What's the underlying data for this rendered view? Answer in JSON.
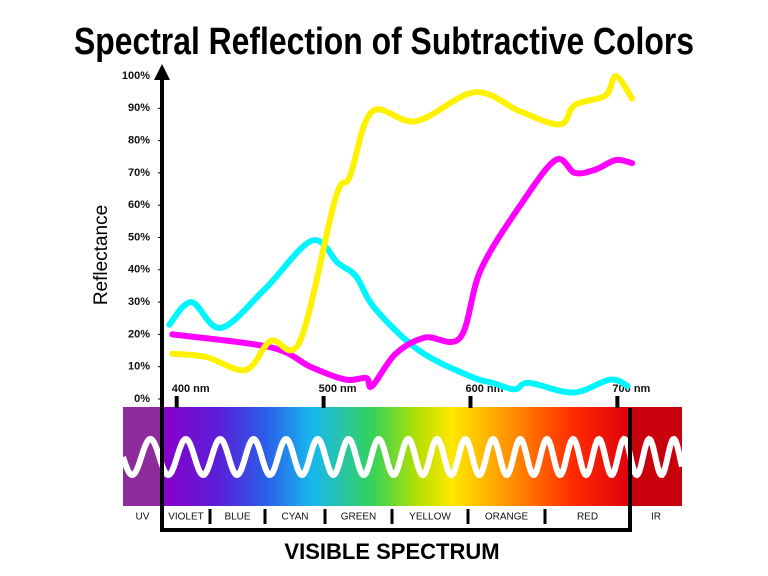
{
  "chart_data": {
    "type": "line",
    "title": "Spectral Reflection of Subtractive Colors",
    "y_label": "Reflectance",
    "spectrum_title": "VISIBLE SPECTRUM",
    "spectrum_labels": [
      "UV",
      "VIOLET",
      "BLUE",
      "CYAN",
      "GREEN",
      "YELLOW",
      "ORANGE",
      "RED",
      "IR"
    ],
    "xlim": [
      390,
      712
    ],
    "ylim": [
      0,
      100
    ],
    "xticks": [
      {
        "value": 400,
        "label": "400 nm"
      },
      {
        "value": 500,
        "label": "500 nm"
      },
      {
        "value": 600,
        "label": "600 nm"
      },
      {
        "value": 700,
        "label": "700 nm"
      }
    ],
    "yticks": [
      {
        "value": 0,
        "label": "0%"
      },
      {
        "value": 10,
        "label": "10%"
      },
      {
        "value": 20,
        "label": "20%"
      },
      {
        "value": 30,
        "label": "30%"
      },
      {
        "value": 40,
        "label": "40%"
      },
      {
        "value": 50,
        "label": "50%"
      },
      {
        "value": 60,
        "label": "60%"
      },
      {
        "value": 70,
        "label": "70%"
      },
      {
        "value": 80,
        "label": "80%"
      },
      {
        "value": 90,
        "label": "90%"
      },
      {
        "value": 100,
        "label": "100%"
      }
    ],
    "series": [
      {
        "color": "#00f5ff",
        "x": [
          395,
          410,
          430,
          460,
          492,
          510,
          522,
          535,
          565,
          600,
          615,
          630,
          640,
          670,
          695,
          707
        ],
        "values": [
          23,
          30,
          22,
          34,
          49,
          42,
          38,
          28,
          15,
          7,
          5,
          3,
          5,
          2,
          6,
          4
        ]
      },
      {
        "color": "#ff00ff",
        "x": [
          397,
          464,
          491,
          515,
          529,
          533,
          549,
          569,
          593,
          607,
          634,
          658,
          671,
          685,
          699,
          710
        ],
        "values": [
          20,
          16,
          10,
          6,
          6.5,
          4,
          14,
          19,
          19,
          40,
          60,
          74,
          70,
          71,
          74,
          73
        ]
      },
      {
        "color": "#fff200",
        "x": [
          397,
          420,
          447,
          464,
          484,
          508,
          518,
          533,
          563,
          603,
          634,
          661,
          671,
          692,
          699,
          710
        ],
        "values": [
          14,
          13,
          9,
          18,
          18,
          62,
          69,
          89,
          86,
          95,
          89,
          85,
          91,
          94,
          100,
          93
        ]
      }
    ]
  }
}
